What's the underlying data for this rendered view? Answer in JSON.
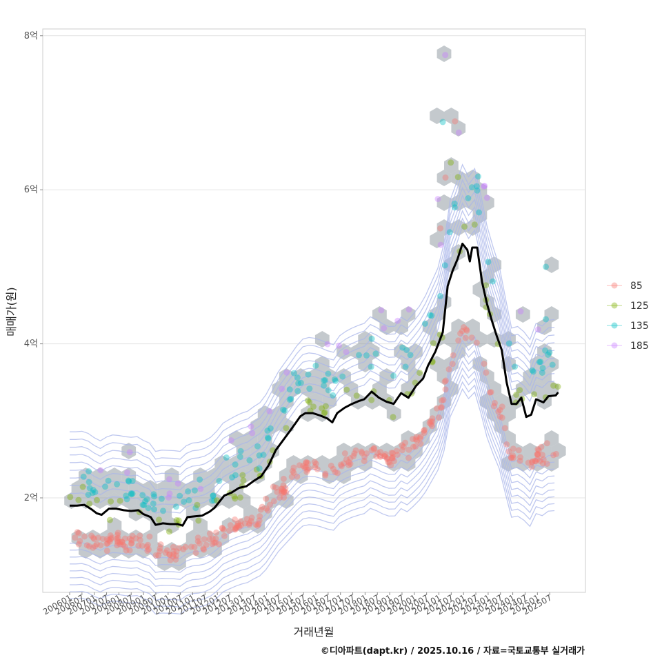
{
  "chart_data": {
    "type": "scatter",
    "xlabel": "거래년월",
    "ylabel": "매매가(원)",
    "y_unit_suffix": "억",
    "ylim": [
      0.9,
      8.1
    ],
    "y_ticks": [
      2,
      4,
      6,
      8
    ],
    "y_tick_labels": [
      "2억",
      "4억",
      "6억",
      "8억"
    ],
    "xlim": [
      2005.75,
      2026.0
    ],
    "x_tick_labels": [
      "200601",
      "200607",
      "200701",
      "200707",
      "200801",
      "200807",
      "200901",
      "200907",
      "201001",
      "201007",
      "201101",
      "201107",
      "201201",
      "201207",
      "201301",
      "201307",
      "201401",
      "201407",
      "201501",
      "201507",
      "201601",
      "201607",
      "201701",
      "201707",
      "201801",
      "201807",
      "201901",
      "201907",
      "202001",
      "202007",
      "202101",
      "202107",
      "202201",
      "202207",
      "202301",
      "202307",
      "202401",
      "202407",
      "202501",
      "202507"
    ],
    "legend": {
      "placement": "right",
      "entries": [
        {
          "label": "85",
          "color": "#F8766D"
        },
        {
          "label": "125",
          "color": "#7CAE00"
        },
        {
          "label": "135",
          "color": "#00BFC4"
        },
        {
          "label": "185",
          "color": "#C77CFF"
        }
      ]
    },
    "median_line": {
      "color": "#000000",
      "points": [
        [
          2006.0,
          1.9
        ],
        [
          2006.3,
          1.9
        ],
        [
          2006.6,
          1.91
        ],
        [
          2006.9,
          1.85
        ],
        [
          2007.1,
          1.8
        ],
        [
          2007.3,
          1.78
        ],
        [
          2007.6,
          1.86
        ],
        [
          2007.9,
          1.86
        ],
        [
          2008.2,
          1.84
        ],
        [
          2008.5,
          1.83
        ],
        [
          2008.8,
          1.84
        ],
        [
          2009.0,
          1.79
        ],
        [
          2009.3,
          1.75
        ],
        [
          2009.5,
          1.65
        ],
        [
          2009.8,
          1.67
        ],
        [
          2010.1,
          1.66
        ],
        [
          2010.4,
          1.66
        ],
        [
          2010.6,
          1.64
        ],
        [
          2010.8,
          1.75
        ],
        [
          2011.1,
          1.76
        ],
        [
          2011.4,
          1.77
        ],
        [
          2011.7,
          1.82
        ],
        [
          2011.9,
          1.87
        ],
        [
          2012.1,
          1.95
        ],
        [
          2012.3,
          2.03
        ],
        [
          2012.6,
          2.07
        ],
        [
          2012.9,
          2.13
        ],
        [
          2013.2,
          2.15
        ],
        [
          2013.5,
          2.22
        ],
        [
          2013.8,
          2.28
        ],
        [
          2014.1,
          2.42
        ],
        [
          2014.4,
          2.62
        ],
        [
          2014.7,
          2.75
        ],
        [
          2015.0,
          2.88
        ],
        [
          2015.2,
          2.97
        ],
        [
          2015.4,
          3.06
        ],
        [
          2015.6,
          3.1
        ],
        [
          2015.9,
          3.1
        ],
        [
          2016.2,
          3.07
        ],
        [
          2016.5,
          3.03
        ],
        [
          2016.7,
          2.98
        ],
        [
          2016.9,
          3.1
        ],
        [
          2017.2,
          3.17
        ],
        [
          2017.5,
          3.22
        ],
        [
          2017.8,
          3.26
        ],
        [
          2018.0,
          3.28
        ],
        [
          2018.3,
          3.38
        ],
        [
          2018.6,
          3.3
        ],
        [
          2018.9,
          3.25
        ],
        [
          2019.2,
          3.22
        ],
        [
          2019.5,
          3.36
        ],
        [
          2019.8,
          3.3
        ],
        [
          2020.1,
          3.45
        ],
        [
          2020.4,
          3.55
        ],
        [
          2020.6,
          3.72
        ],
        [
          2020.9,
          3.9
        ],
        [
          2021.2,
          4.15
        ],
        [
          2021.4,
          4.75
        ],
        [
          2021.6,
          4.95
        ],
        [
          2021.8,
          5.1
        ],
        [
          2022.0,
          5.3
        ],
        [
          2022.2,
          5.22
        ],
        [
          2022.3,
          5.07
        ],
        [
          2022.4,
          5.25
        ],
        [
          2022.6,
          5.25
        ],
        [
          2022.8,
          4.8
        ],
        [
          2023.0,
          4.52
        ],
        [
          2023.2,
          4.3
        ],
        [
          2023.4,
          4.1
        ],
        [
          2023.6,
          3.92
        ],
        [
          2023.8,
          3.5
        ],
        [
          2024.0,
          3.22
        ],
        [
          2024.2,
          3.22
        ],
        [
          2024.4,
          3.3
        ],
        [
          2024.6,
          3.05
        ],
        [
          2024.8,
          3.08
        ],
        [
          2025.0,
          3.28
        ],
        [
          2025.3,
          3.24
        ],
        [
          2025.5,
          3.32
        ],
        [
          2025.8,
          3.33
        ],
        [
          2025.9,
          3.37
        ]
      ]
    }
  },
  "caption": "©디아파트(dapt.kr) / 2025.10.16 / 자료=국토교통부 실거래가"
}
